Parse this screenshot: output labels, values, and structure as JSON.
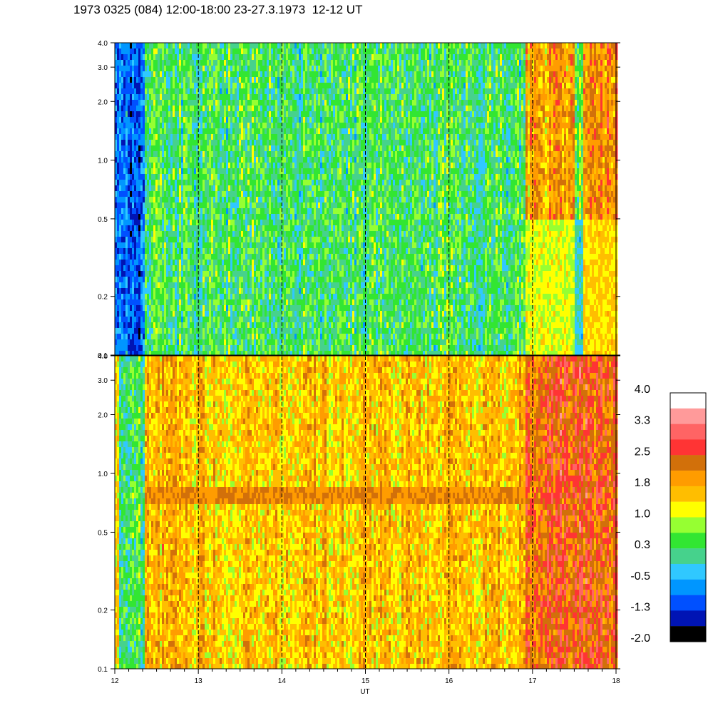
{
  "header": {
    "title": "1973 0325 (084) 12:00-18:00 23-27.3.1973  12-12 UT"
  },
  "chart_data": {
    "type": "heatmap",
    "title": "1973 0325 (084) 12:00-18:00 23-27.3.1973  12-12 UT",
    "xlabel": "UT",
    "xlim": [
      12,
      18
    ],
    "x_ticks": [
      12,
      13,
      14,
      15,
      16,
      17,
      18
    ],
    "x_tick_labels": [
      "12",
      "13",
      "14",
      "15",
      "16",
      "17",
      "18"
    ],
    "dashed_hour_lines": [
      13,
      14,
      15,
      16,
      17
    ],
    "y_scale": "log",
    "ylim": [
      0.1,
      4.0
    ],
    "y_ticks": [
      0.1,
      0.2,
      0.5,
      1.0,
      2.0,
      3.0,
      4.0
    ],
    "y_tick_labels": [
      "0.1",
      "0.2",
      "0.5",
      "1.0",
      "2.0",
      "3.0",
      "4.0"
    ],
    "panels": [
      {
        "id": "top",
        "description_regions": [
          {
            "x": [
              12.0,
              12.35
            ],
            "level": -1.3
          },
          {
            "x": [
              12.35,
              16.9
            ],
            "level": 0.1
          },
          {
            "x": [
              16.9,
              17.5
            ],
            "level": 1.8
          },
          {
            "x": [
              17.5,
              17.6
            ],
            "level": 0.3
          },
          {
            "x": [
              17.6,
              18.0
            ],
            "level": 2.2
          }
        ]
      },
      {
        "id": "bottom",
        "description_regions": [
          {
            "x": [
              12.0,
              12.05
            ],
            "level": 1.8
          },
          {
            "x": [
              12.05,
              12.35
            ],
            "level": 0.0
          },
          {
            "x": [
              12.35,
              16.9
            ],
            "level": 1.6
          },
          {
            "x": [
              16.9,
              18.0
            ],
            "level": 2.6
          }
        ],
        "band": {
          "y": [
            0.7,
            0.85
          ],
          "level": 2.2
        }
      }
    ],
    "colorbar": {
      "labels": [
        "4.0",
        "3.3",
        "2.5",
        "1.8",
        "1.0",
        "0.3",
        "-0.5",
        "-1.3",
        "-2.0"
      ],
      "colors": [
        "#ffffff",
        "#ff9a9a",
        "#ff6464",
        "#ff3434",
        "#d2700a",
        "#ff9c00",
        "#ffbe00",
        "#ffff00",
        "#96ff32",
        "#32e632",
        "#46d28c",
        "#30c8ff",
        "#0096ff",
        "#0050ff",
        "#0014b4",
        "#000000"
      ]
    }
  }
}
